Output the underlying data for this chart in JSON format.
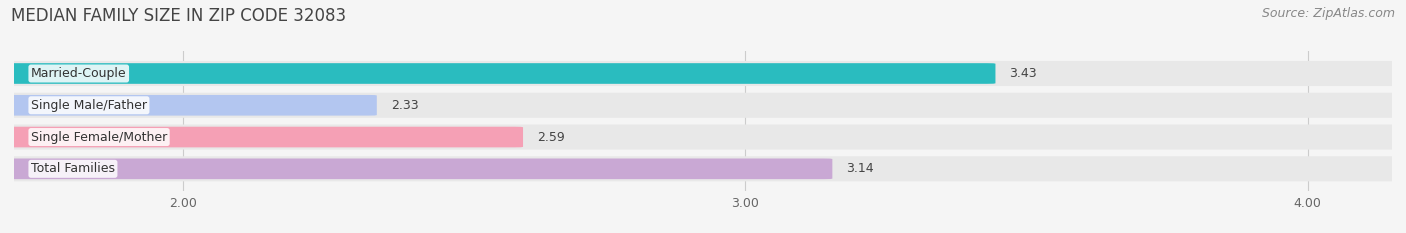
{
  "title": "MEDIAN FAMILY SIZE IN ZIP CODE 32083",
  "source": "Source: ZipAtlas.com",
  "categories": [
    "Married-Couple",
    "Single Male/Father",
    "Single Female/Mother",
    "Total Families"
  ],
  "values": [
    3.43,
    2.33,
    2.59,
    3.14
  ],
  "bar_colors": [
    "#2abcbf",
    "#b3c6f0",
    "#f5a0b5",
    "#c9a8d4"
  ],
  "xlim": [
    1.7,
    4.15
  ],
  "xstart": 1.7,
  "xticks": [
    2.0,
    3.0,
    4.0
  ],
  "xtick_labels": [
    "2.00",
    "3.00",
    "4.00"
  ],
  "background_color": "#f5f5f5",
  "row_bg_color": "#ececec",
  "title_fontsize": 12,
  "source_fontsize": 9,
  "label_fontsize": 9,
  "value_fontsize": 9,
  "tick_fontsize": 9,
  "bar_height": 0.62
}
